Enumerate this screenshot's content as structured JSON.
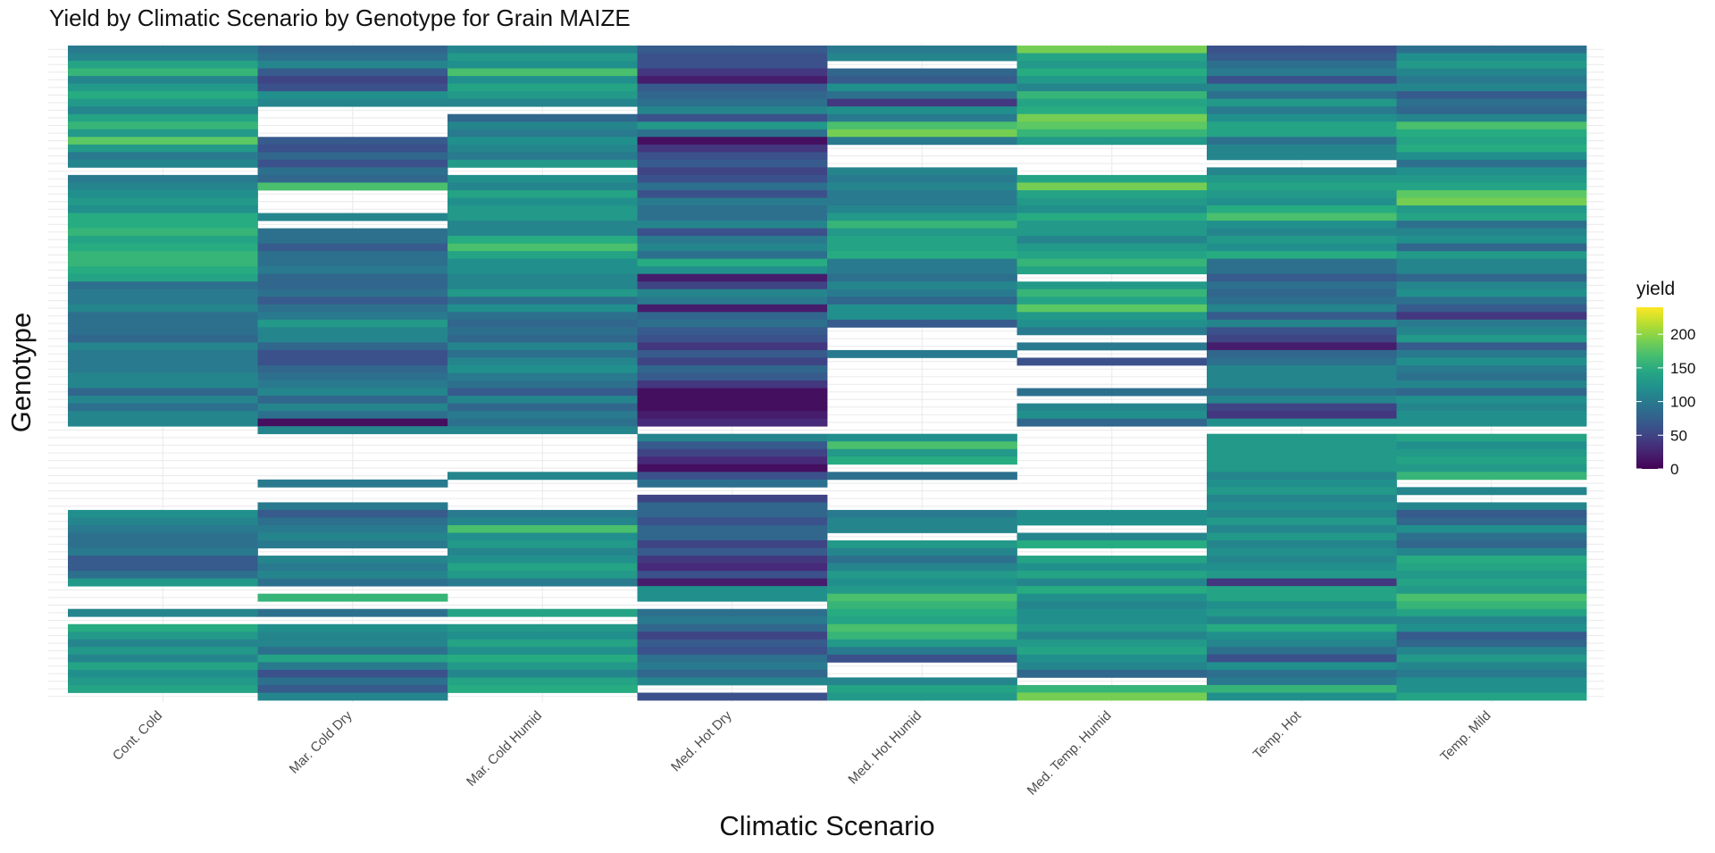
{
  "chart_data": {
    "type": "heatmap",
    "title": "Yield by Climatic Scenario by Genotype for Grain MAIZE",
    "xlabel": "Climatic Scenario",
    "ylabel": "Genotype",
    "x_categories": [
      "Cont. Cold",
      "Mar. Cold Dry",
      "Mar. Cold Humid",
      "Med. Hot Dry",
      "Med. Hot Humid",
      "Med. Temp. Humid",
      "Temp. Hot",
      "Temp. Mild"
    ],
    "y_tick_labels_shown": false,
    "n_genotypes": 86,
    "legend": {
      "title": "yield",
      "ticks": [
        0,
        50,
        100,
        150,
        200
      ],
      "range": [
        0,
        240
      ],
      "position": "right",
      "colormap": "viridis"
    },
    "grid": true,
    "missing_color": "#ffffff",
    "values": [
      [
        100,
        80,
        110,
        70,
        100,
        190,
        60,
        90
      ],
      [
        110,
        90,
        130,
        60,
        110,
        140,
        70,
        120
      ],
      [
        140,
        110,
        120,
        60,
        null,
        130,
        90,
        130
      ],
      [
        160,
        70,
        170,
        40,
        80,
        150,
        100,
        110
      ],
      [
        110,
        50,
        120,
        20,
        70,
        130,
        60,
        100
      ],
      [
        130,
        60,
        140,
        70,
        120,
        110,
        110,
        110
      ],
      [
        150,
        120,
        130,
        80,
        90,
        160,
        90,
        70
      ],
      [
        130,
        110,
        110,
        90,
        40,
        140,
        130,
        90
      ],
      [
        110,
        null,
        null,
        110,
        120,
        150,
        100,
        80
      ],
      [
        140,
        null,
        80,
        60,
        100,
        190,
        120,
        110
      ],
      [
        160,
        null,
        110,
        130,
        170,
        180,
        140,
        170
      ],
      [
        130,
        null,
        100,
        90,
        190,
        160,
        140,
        150
      ],
      [
        180,
        70,
        120,
        10,
        100,
        130,
        90,
        140
      ],
      [
        130,
        60,
        110,
        40,
        null,
        null,
        110,
        150
      ],
      [
        100,
        80,
        100,
        60,
        null,
        null,
        110,
        120
      ],
      [
        110,
        60,
        130,
        70,
        null,
        null,
        null,
        90
      ],
      [
        null,
        90,
        null,
        50,
        110,
        null,
        110,
        120
      ],
      [
        100,
        80,
        120,
        60,
        100,
        140,
        130,
        130
      ],
      [
        110,
        170,
        110,
        90,
        110,
        190,
        140,
        140
      ],
      [
        120,
        null,
        140,
        60,
        100,
        140,
        130,
        180
      ],
      [
        130,
        null,
        120,
        100,
        100,
        130,
        120,
        190
      ],
      [
        120,
        null,
        130,
        90,
        110,
        120,
        150,
        130
      ],
      [
        150,
        110,
        130,
        90,
        130,
        150,
        170,
        140
      ],
      [
        150,
        null,
        110,
        110,
        160,
        130,
        120,
        90
      ],
      [
        160,
        90,
        110,
        60,
        130,
        130,
        110,
        110
      ],
      [
        140,
        90,
        150,
        100,
        140,
        110,
        130,
        120
      ],
      [
        150,
        70,
        170,
        110,
        140,
        130,
        120,
        80
      ],
      [
        160,
        90,
        140,
        90,
        150,
        140,
        150,
        130
      ],
      [
        160,
        90,
        120,
        150,
        100,
        160,
        90,
        110
      ],
      [
        150,
        100,
        120,
        120,
        100,
        140,
        90,
        110
      ],
      [
        140,
        80,
        110,
        20,
        90,
        null,
        70,
        80
      ],
      [
        90,
        80,
        110,
        50,
        110,
        130,
        90,
        110
      ],
      [
        100,
        90,
        130,
        110,
        100,
        160,
        80,
        120
      ],
      [
        100,
        70,
        90,
        100,
        80,
        140,
        90,
        90
      ],
      [
        110,
        90,
        120,
        20,
        120,
        180,
        110,
        70
      ],
      [
        90,
        100,
        90,
        80,
        120,
        130,
        70,
        40
      ],
      [
        90,
        130,
        80,
        90,
        70,
        120,
        110,
        100
      ],
      [
        90,
        110,
        90,
        70,
        null,
        100,
        60,
        110
      ],
      [
        80,
        110,
        80,
        60,
        null,
        null,
        50,
        130
      ],
      [
        110,
        80,
        110,
        40,
        null,
        100,
        20,
        70
      ],
      [
        100,
        60,
        90,
        70,
        100,
        null,
        80,
        100
      ],
      [
        100,
        60,
        110,
        50,
        null,
        60,
        90,
        120
      ],
      [
        100,
        80,
        120,
        80,
        null,
        null,
        110,
        100
      ],
      [
        110,
        90,
        100,
        70,
        null,
        null,
        110,
        90
      ],
      [
        110,
        100,
        90,
        40,
        null,
        null,
        110,
        110
      ],
      [
        80,
        110,
        70,
        10,
        null,
        90,
        90,
        80
      ],
      [
        110,
        80,
        110,
        10,
        null,
        null,
        110,
        120
      ],
      [
        90,
        110,
        80,
        10,
        null,
        110,
        50,
        110
      ],
      [
        110,
        90,
        100,
        20,
        null,
        120,
        40,
        120
      ],
      [
        110,
        10,
        90,
        30,
        null,
        80,
        120,
        120
      ],
      [
        null,
        110,
        110,
        null,
        null,
        null,
        null,
        null
      ],
      [
        null,
        null,
        null,
        110,
        120,
        null,
        130,
        140
      ],
      [
        null,
        null,
        null,
        70,
        170,
        null,
        130,
        120
      ],
      [
        null,
        null,
        null,
        50,
        130,
        null,
        130,
        130
      ],
      [
        null,
        null,
        null,
        30,
        150,
        null,
        130,
        140
      ],
      [
        null,
        null,
        null,
        10,
        null,
        null,
        130,
        130
      ],
      [
        null,
        null,
        110,
        60,
        90,
        null,
        110,
        160
      ],
      [
        null,
        100,
        null,
        90,
        null,
        null,
        120,
        null
      ],
      [
        null,
        null,
        null,
        null,
        null,
        null,
        130,
        110
      ],
      [
        null,
        null,
        null,
        50,
        null,
        null,
        110,
        null
      ],
      [
        null,
        100,
        null,
        80,
        null,
        null,
        120,
        110
      ],
      [
        120,
        70,
        100,
        80,
        100,
        120,
        110,
        70
      ],
      [
        110,
        90,
        110,
        60,
        110,
        120,
        130,
        80
      ],
      [
        100,
        100,
        170,
        80,
        110,
        null,
        110,
        120
      ],
      [
        90,
        110,
        120,
        80,
        null,
        110,
        130,
        90
      ],
      [
        90,
        100,
        130,
        50,
        130,
        150,
        110,
        80
      ],
      [
        100,
        null,
        110,
        70,
        110,
        null,
        120,
        110
      ],
      [
        70,
        110,
        120,
        40,
        90,
        140,
        110,
        150
      ],
      [
        70,
        100,
        140,
        30,
        110,
        120,
        120,
        140
      ],
      [
        90,
        110,
        130,
        60,
        130,
        140,
        130,
        130
      ],
      [
        130,
        90,
        100,
        20,
        120,
        110,
        40,
        140
      ],
      [
        null,
        null,
        null,
        120,
        130,
        150,
        140,
        130
      ],
      [
        null,
        160,
        null,
        120,
        170,
        120,
        140,
        170
      ],
      [
        null,
        null,
        null,
        null,
        160,
        110,
        120,
        160
      ],
      [
        110,
        90,
        140,
        90,
        150,
        120,
        130,
        140
      ],
      [
        null,
        null,
        null,
        100,
        140,
        120,
        110,
        110
      ],
      [
        150,
        120,
        130,
        80,
        170,
        130,
        150,
        120
      ],
      [
        130,
        110,
        120,
        50,
        160,
        110,
        120,
        70
      ],
      [
        110,
        110,
        140,
        70,
        130,
        130,
        110,
        80
      ],
      [
        130,
        90,
        120,
        60,
        100,
        140,
        90,
        110
      ],
      [
        110,
        140,
        150,
        90,
        60,
        120,
        60,
        130
      ],
      [
        140,
        100,
        130,
        100,
        null,
        110,
        120,
        110
      ],
      [
        120,
        60,
        110,
        80,
        null,
        80,
        90,
        100
      ],
      [
        130,
        90,
        140,
        110,
        110,
        null,
        100,
        120
      ],
      [
        140,
        70,
        150,
        null,
        140,
        160,
        160,
        120
      ],
      [
        null,
        110,
        null,
        60,
        130,
        190,
        120,
        140
      ]
    ]
  }
}
